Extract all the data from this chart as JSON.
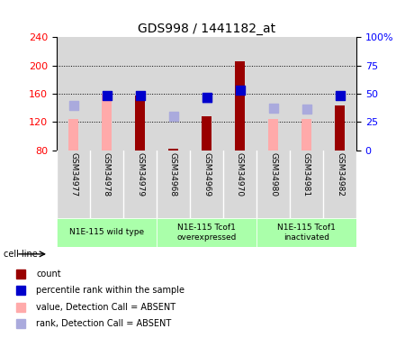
{
  "title": "GDS998 / 1441182_at",
  "samples": [
    "GSM34977",
    "GSM34978",
    "GSM34979",
    "GSM34968",
    "GSM34969",
    "GSM34970",
    "GSM34980",
    "GSM34981",
    "GSM34982"
  ],
  "ylim_left": [
    80,
    240
  ],
  "ylim_right": [
    0,
    100
  ],
  "yticks_left": [
    80,
    120,
    160,
    200,
    240
  ],
  "yticks_right": [
    0,
    25,
    50,
    75,
    100
  ],
  "count_values": [
    null,
    null,
    158,
    82,
    128,
    206,
    null,
    null,
    143
  ],
  "count_color": "#990000",
  "percentile_values": [
    null,
    158,
    158,
    null,
    155,
    165,
    null,
    null,
    157
  ],
  "percentile_color": "#0000cc",
  "absent_value_values": [
    125,
    160,
    null,
    null,
    null,
    null,
    125,
    124,
    null
  ],
  "absent_value_color": "#ffaaaa",
  "absent_rank_values": [
    144,
    null,
    null,
    128,
    154,
    null,
    140,
    138,
    null
  ],
  "absent_rank_color": "#aaaadd",
  "bar_width": 0.32,
  "dot_size": 45,
  "background_color": "#ffffff",
  "cell_line_groups": [
    {
      "label": "N1E-115 wild type",
      "start": 0,
      "end": 2,
      "color": "#aaffaa"
    },
    {
      "label": "N1E-115 Tcof1\noverexpressed",
      "start": 3,
      "end": 5,
      "color": "#aaffaa"
    },
    {
      "label": "N1E-115 Tcof1\ninactivated",
      "start": 6,
      "end": 8,
      "color": "#aaffaa"
    }
  ],
  "legend_items": [
    {
      "label": "count",
      "color": "#990000"
    },
    {
      "label": "percentile rank within the sample",
      "color": "#0000cc"
    },
    {
      "label": "value, Detection Call = ABSENT",
      "color": "#ffaaaa"
    },
    {
      "label": "rank, Detection Call = ABSENT",
      "color": "#aaaadd"
    }
  ]
}
